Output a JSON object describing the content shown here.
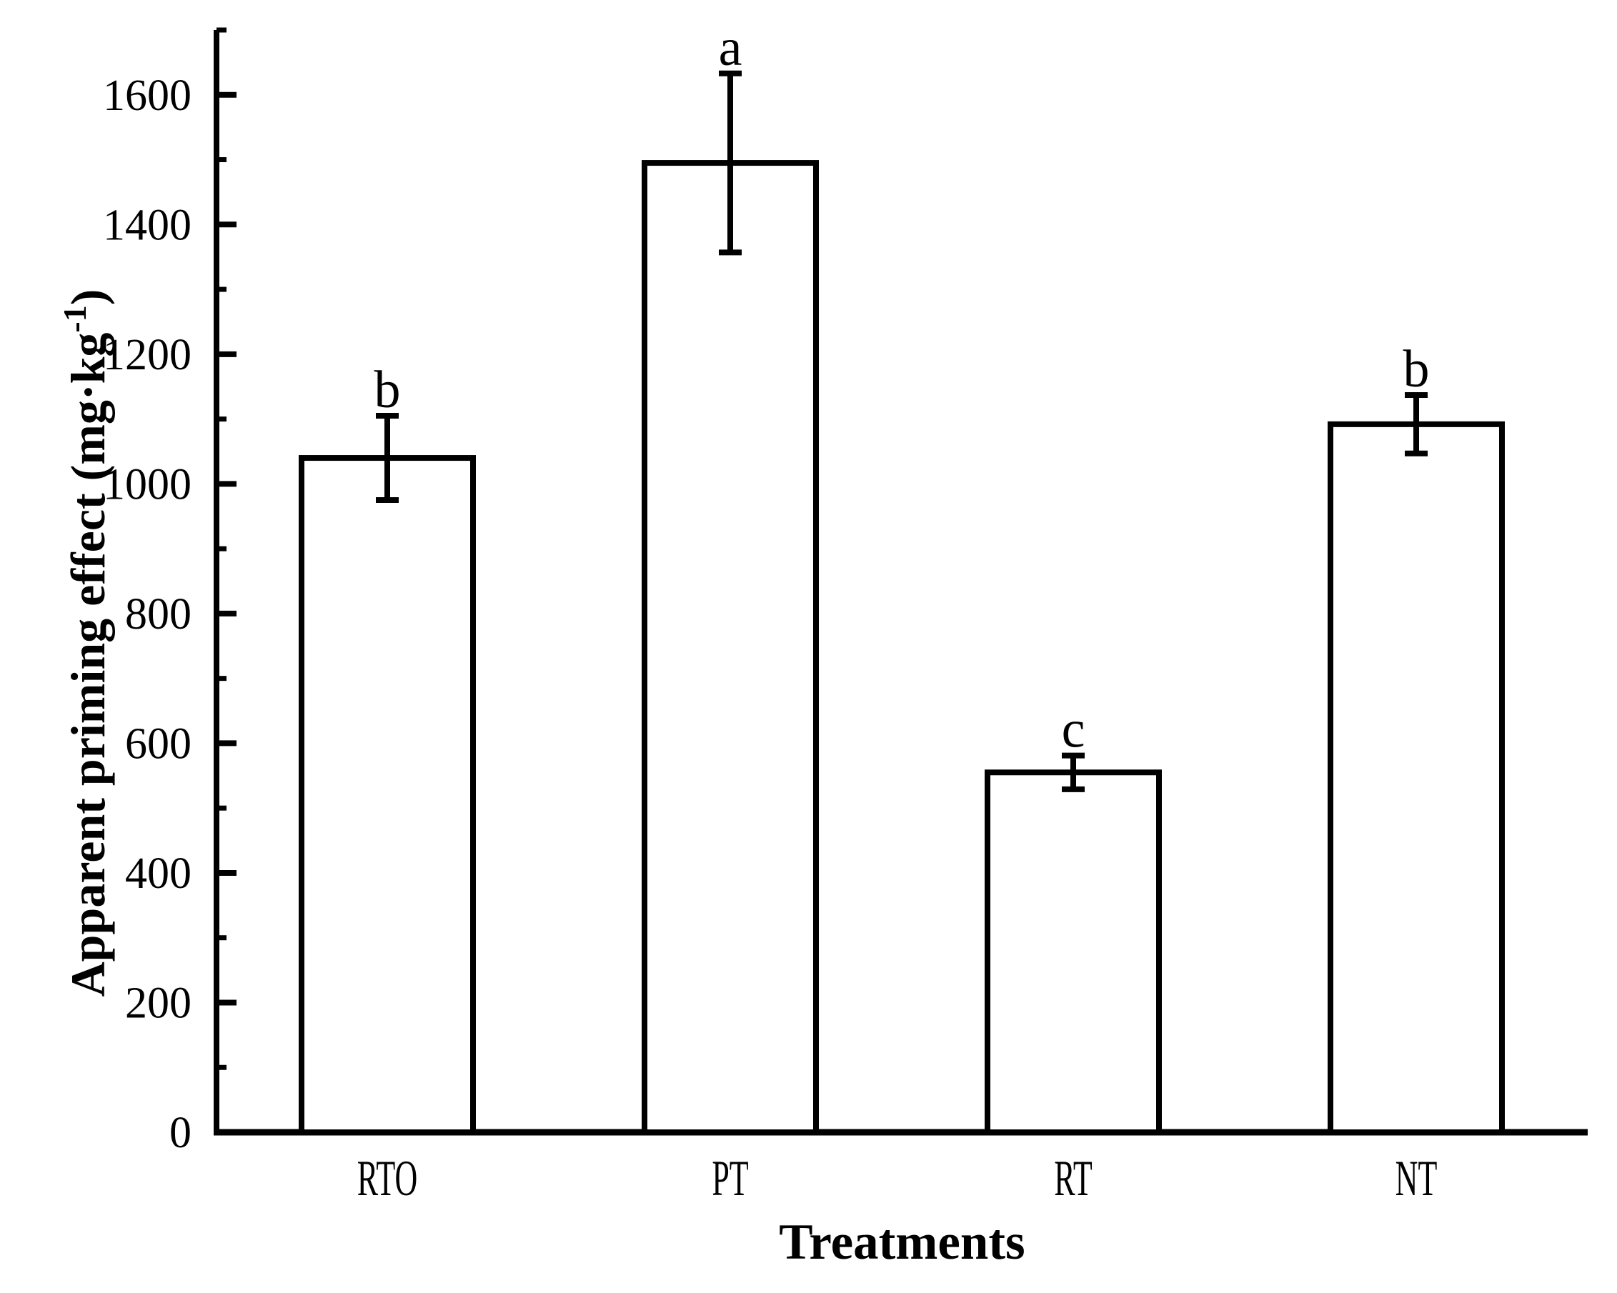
{
  "page": {
    "background": "#ffffff",
    "foreground": "#000000"
  },
  "chart_data": {
    "type": "bar",
    "title": "",
    "categories": [
      "RTO",
      "PT",
      "RT",
      "NT"
    ],
    "values": [
      1040,
      1495,
      555,
      1092
    ],
    "errors": [
      65,
      138,
      26,
      45
    ],
    "sig_letters": [
      "b",
      "a",
      "c",
      "b"
    ],
    "xlabel": "Treatments",
    "ylabel": "Apparent priming effect (mg·kg⁻¹)",
    "ylabel_parts": {
      "main": "Apparent priming effect (mg·kg",
      "sup": "-1",
      "close": ")"
    },
    "ylim": [
      0,
      1700
    ],
    "ytick_major_step": 200,
    "ytick_minor_step": 100,
    "ytick_labels": [
      "0",
      "200",
      "400",
      "600",
      "800",
      "1000",
      "1200",
      "1400",
      "1600"
    ],
    "grid": false,
    "legend": null,
    "bar_fill": "#ffffff",
    "stroke_color": "#000000"
  }
}
